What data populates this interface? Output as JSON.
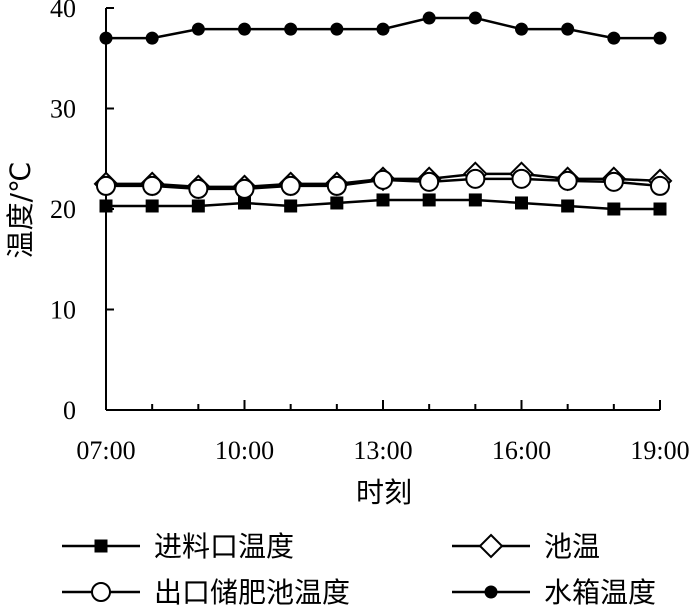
{
  "chart_data": {
    "type": "line",
    "xlabel": "时刻",
    "ylabel": "温度/℃",
    "ylim": [
      0,
      40
    ],
    "yticks": [
      "0",
      "10",
      "20",
      "30",
      "40"
    ],
    "xlim": [
      7,
      19
    ],
    "xticks": [
      {
        "value": 7,
        "label": "07:00"
      },
      {
        "value": 10,
        "label": "10:00"
      },
      {
        "value": 13,
        "label": "13:00"
      },
      {
        "value": 16,
        "label": "16:00"
      },
      {
        "value": 19,
        "label": "19:00"
      }
    ],
    "x": [
      7,
      8,
      9,
      10,
      11,
      12,
      13,
      14,
      15,
      16,
      17,
      18,
      19
    ],
    "grid": false,
    "legend_position": "bottom",
    "series": [
      {
        "name": "进料口温度",
        "marker": "filled-square",
        "values": [
          20.3,
          20.3,
          20.3,
          20.6,
          20.3,
          20.6,
          20.9,
          20.9,
          20.9,
          20.6,
          20.3,
          20.0,
          20.0
        ]
      },
      {
        "name": "池温",
        "marker": "open-diamond",
        "values": [
          22.5,
          22.5,
          22.2,
          22.2,
          22.5,
          22.5,
          23.0,
          23.0,
          23.5,
          23.5,
          23.0,
          23.0,
          22.8
        ]
      },
      {
        "name": "出口储肥池温度",
        "marker": "open-circle",
        "values": [
          22.3,
          22.3,
          22.0,
          22.0,
          22.3,
          22.3,
          22.9,
          22.7,
          23.0,
          23.0,
          22.8,
          22.7,
          22.3
        ]
      },
      {
        "name": "水箱温度",
        "marker": "filled-circle",
        "values": [
          37.0,
          37.0,
          37.9,
          37.9,
          37.9,
          37.9,
          37.9,
          39.0,
          39.0,
          37.9,
          37.9,
          37.0,
          37.0
        ]
      }
    ]
  }
}
